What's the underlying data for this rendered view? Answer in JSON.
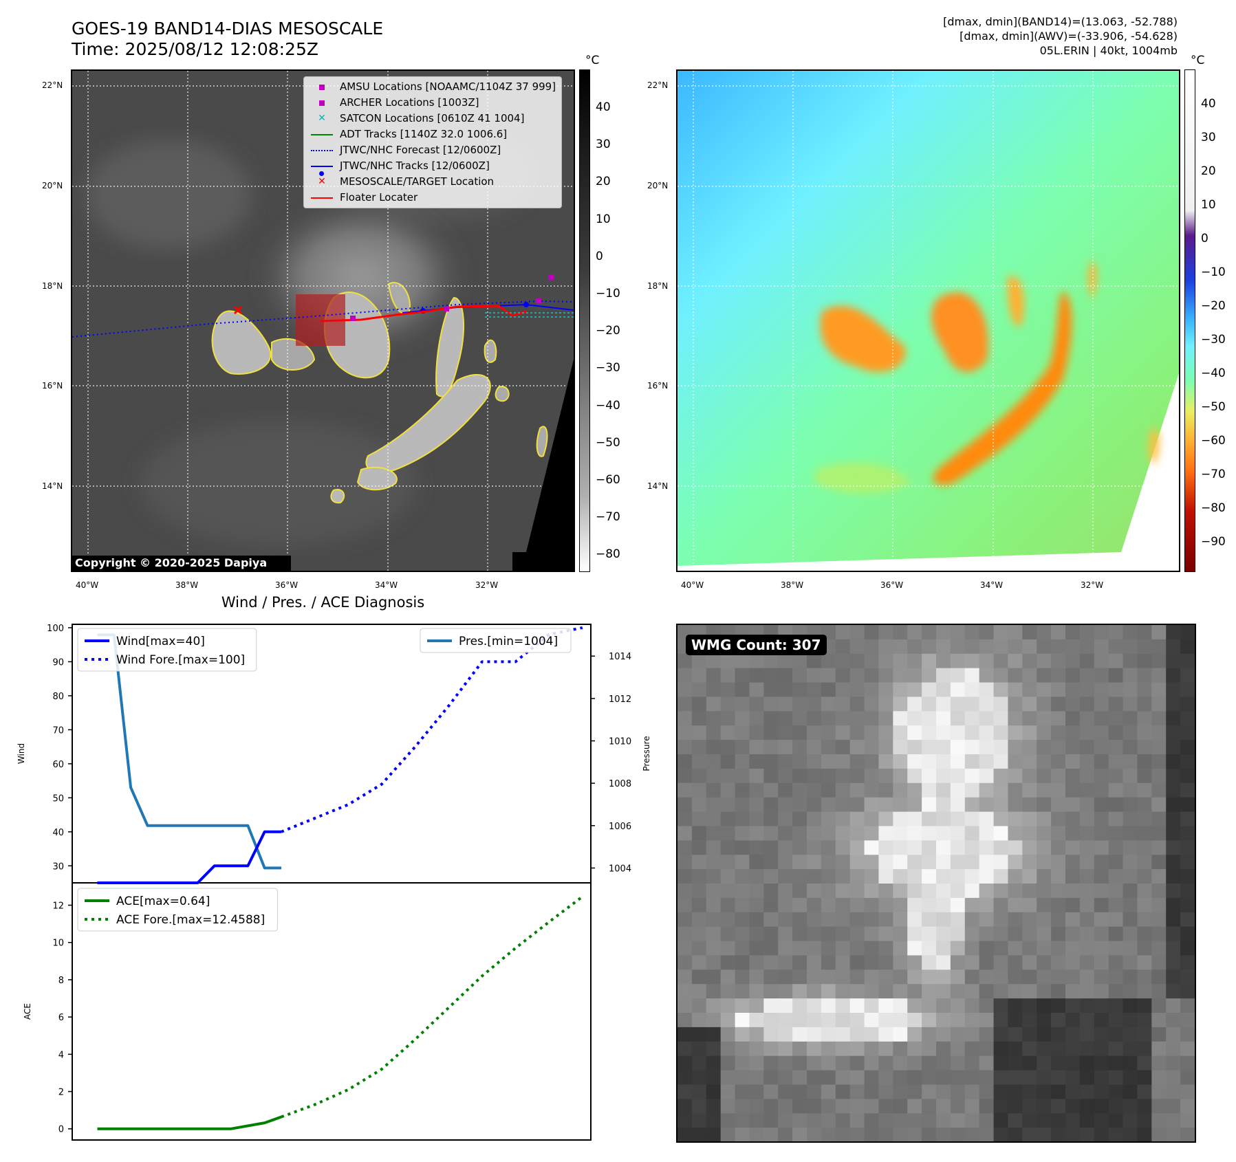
{
  "header": {
    "title_line1": "GOES-19 BAND14-DIAS MESOSCALE",
    "title_line2": "Time: 2025/08/12 12:08:25Z",
    "right_line1": "[dmax, dmin](BAND14)=(13.063, -52.788)",
    "right_line2": "[dmax, dmin](AWV)=(-33.906, -54.628)",
    "right_line3": "05L.ERIN | 40kt, 1004mb"
  },
  "map_axes": {
    "lat_labels": [
      "22°N",
      "20°N",
      "18°N",
      "16°N",
      "14°N"
    ],
    "lon_labels": [
      "40°W",
      "38°W",
      "36°W",
      "34°W",
      "32°W"
    ]
  },
  "ir_panel": {
    "copyright": "Copyright © 2020-2025 Dapiya",
    "colorbar_unit": "°C",
    "colorbar_ticks": [
      "40",
      "30",
      "20",
      "10",
      "0",
      "−10",
      "−20",
      "−30",
      "−40",
      "−50",
      "−60",
      "−70",
      "−80"
    ],
    "legend": [
      {
        "label": "AMSU Locations [NOAAMC/1104Z 37 999]",
        "symbol": "square-marker",
        "color": "#c000c0"
      },
      {
        "label": "ARCHER Locations [1003Z]",
        "symbol": "square-marker",
        "color": "#c000c0"
      },
      {
        "label": "SATCON Locations [0610Z 41 1004]",
        "symbol": "x-marker",
        "color": "#00b5b5"
      },
      {
        "label": "ADT Tracks [1140Z 32.0 1006.6]",
        "symbol": "solid-line",
        "color": "#008000"
      },
      {
        "label": "JTWC/NHC Forecast [12/0600Z]",
        "symbol": "dotted-line",
        "color": "#0000ff"
      },
      {
        "label": "JTWC/NHC Tracks [12/0600Z]",
        "symbol": "line-dot",
        "color": "#0000ff"
      },
      {
        "label": "MESOSCALE/TARGET Location",
        "symbol": "x-marker",
        "color": "#ff0000"
      },
      {
        "label": "Floater Locater",
        "symbol": "solid-line",
        "color": "#ff0000"
      }
    ]
  },
  "wv_panel": {
    "colorbar_unit": "°C",
    "colorbar_ticks": [
      "40",
      "30",
      "20",
      "10",
      "0",
      "−10",
      "−20",
      "−30",
      "−40",
      "−50",
      "−60",
      "−70",
      "−80",
      "−90"
    ]
  },
  "diag_title": "Wind / Pres. / ACE Diagnosis",
  "wmg_label": "WMG Count: 307",
  "chart_data": [
    {
      "type": "line",
      "ylabel": "Wind",
      "y2label": "Pressure",
      "ylim": [
        25,
        101
      ],
      "y2lim": [
        1003.3,
        1015.5
      ],
      "yticks": [
        30,
        40,
        50,
        60,
        70,
        80,
        90,
        100
      ],
      "y2ticks": [
        1004,
        1006,
        1008,
        1010,
        1012,
        1014
      ],
      "series": [
        {
          "name": "Wind[max=40]",
          "axis": "left",
          "style": "solid",
          "color": "#0000ff",
          "x": [
            0,
            1,
            2,
            3,
            4,
            5,
            6,
            7,
            8,
            9,
            10,
            11
          ],
          "y": [
            25,
            25,
            25,
            25,
            25,
            25,
            25,
            30,
            30,
            30,
            40,
            40
          ]
        },
        {
          "name": "Wind Fore.[max=100]",
          "axis": "left",
          "style": "dotted",
          "color": "#0000ff",
          "x": [
            11,
            13,
            15,
            17,
            19,
            21,
            23,
            25,
            27,
            29
          ],
          "y": [
            40,
            44,
            48,
            54,
            65,
            77,
            90,
            90,
            98,
            100
          ]
        },
        {
          "name": "Pres.[min=1004]",
          "axis": "right",
          "style": "solid",
          "color": "#1f77b4",
          "x": [
            0,
            1,
            2,
            3,
            4,
            5,
            6,
            7,
            8,
            9,
            10,
            11
          ],
          "y": [
            1015,
            1015,
            1007.8,
            1006,
            1006,
            1006,
            1006,
            1006,
            1006,
            1006,
            1004,
            1004
          ]
        }
      ]
    },
    {
      "type": "line",
      "ylabel": "ACE",
      "ylim": [
        -0.6,
        13.2
      ],
      "yticks": [
        0,
        2,
        4,
        6,
        8,
        10,
        12
      ],
      "series": [
        {
          "name": "ACE[max=0.64]",
          "style": "solid",
          "color": "#008000",
          "x": [
            0,
            6,
            8,
            10,
            11
          ],
          "y": [
            0,
            0,
            0,
            0.32,
            0.64
          ]
        },
        {
          "name": "ACE Fore.[max=12.4588]",
          "style": "dotted",
          "color": "#008000",
          "x": [
            11,
            13,
            15,
            17,
            19,
            21,
            23,
            25,
            27,
            29
          ],
          "y": [
            0.64,
            1.3,
            2.1,
            3.2,
            4.8,
            6.5,
            8.2,
            9.7,
            11.1,
            12.4588
          ]
        }
      ]
    }
  ]
}
